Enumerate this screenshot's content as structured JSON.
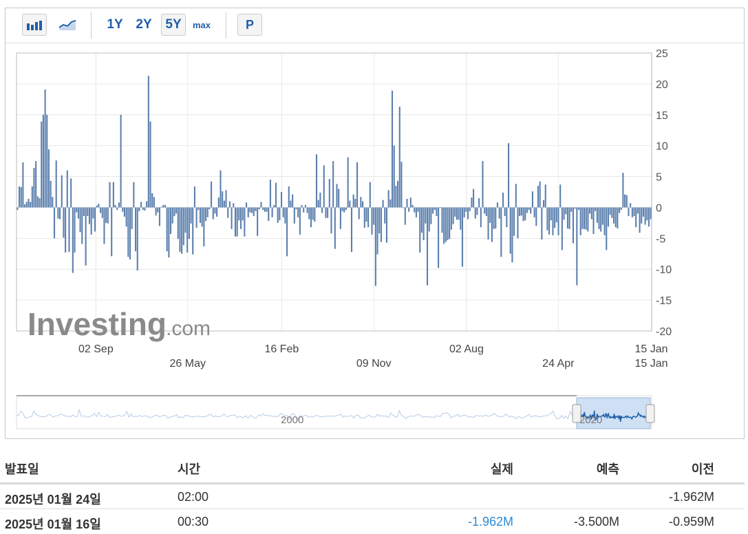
{
  "toolbar": {
    "bar_icon": "bar-chart-icon",
    "line_icon": "line-chart-icon",
    "ranges": [
      "1Y",
      "2Y",
      "5Y",
      "max"
    ],
    "active_range": "5Y",
    "p_label": "P"
  },
  "watermark": {
    "brand": "Investing",
    "suffix": ".com"
  },
  "chart_data": {
    "type": "bar",
    "title": "",
    "xlabel": "",
    "ylabel": "",
    "ylim": [
      -20,
      25
    ],
    "y_ticks": [
      25,
      20,
      15,
      10,
      5,
      0,
      -5,
      -10,
      -15,
      -20
    ],
    "grid": true,
    "x_ticks_upper": [
      "02 Sep",
      "16 Feb",
      "02 Aug",
      "15 Jan"
    ],
    "x_ticks_lower": [
      "26 May",
      "09 Nov",
      "24 Apr",
      "15 Jan"
    ],
    "navigator_label": "2000",
    "navigator_label_2": "2020",
    "values": [
      -0.4,
      3.4,
      3.3,
      7.3,
      0.5,
      0.9,
      1.4,
      0.9,
      3.4,
      6.4,
      7.5,
      1.8,
      1.5,
      13.9,
      15.0,
      19.1,
      15.0,
      9.4,
      4.3,
      1.7,
      -5.0,
      7.6,
      -1.8,
      -1.9,
      5.2,
      -4.9,
      -7.3,
      6.0,
      -7.2,
      4.7,
      -10.6,
      -7.3,
      -0.8,
      -1.8,
      -4.0,
      -5.9,
      -1.4,
      -9.4,
      -1.4,
      -2.7,
      -4.4,
      -1.8,
      -3.9,
      0.3,
      0.6,
      -0.9,
      -1.7,
      -5.9,
      -2.5,
      -2.6,
      4.1,
      -7.9,
      4.1,
      0.4,
      -0.4,
      0.8,
      15.0,
      -0.7,
      -1.5,
      -3.1,
      -8.0,
      -8.4,
      -3.5,
      4.1,
      -7.1,
      -10.2,
      -0.6,
      0.9,
      -0.4,
      -0.5,
      1.0,
      21.3,
      13.9,
      2.3,
      1.7,
      -1.3,
      -0.8,
      -3.0,
      0.1,
      0.4,
      0.4,
      -7.1,
      -8.1,
      -4.3,
      -2.6,
      -1.4,
      -1.0,
      -5.1,
      -7.2,
      -7.5,
      -6.1,
      -4.1,
      -7.3,
      -5.1,
      -2.6,
      -7.6,
      3.4,
      -3.3,
      -0.4,
      -2.5,
      -3.1,
      -6.3,
      -2.2,
      -1.6,
      -0.3,
      4.2,
      -1.9,
      -1.0,
      -1.5,
      1.6,
      6.0,
      2.6,
      1.1,
      2.8,
      -1.7,
      1.0,
      -3.5,
      0.7,
      -4.7,
      -4.7,
      -2.1,
      -3.5,
      -2.1,
      -4.7,
      0.8,
      -1.6,
      -0.8,
      -0.9,
      -1.4,
      -0.6,
      -4.6,
      -0.3,
      0.9,
      -0.4,
      -0.7,
      -0.7,
      -2.2,
      4.5,
      -1.6,
      0.4,
      4.0,
      -2.5,
      -2.1,
      2.5,
      -1.6,
      -2.6,
      -7.9,
      3.4,
      1.1,
      2.1,
      -2.6,
      -0.3,
      -1.6,
      -4.4,
      0.4,
      -0.8,
      0.4,
      -0.9,
      -1.9,
      -3.2,
      -2.0,
      -2.3,
      8.6,
      1.2,
      2.4,
      -0.9,
      6.8,
      -1.7,
      -1.7,
      4.6,
      -4.2,
      7.5,
      -6.7,
      3.8,
      3.0,
      -3.5,
      -0.6,
      -0.8,
      -0.4,
      8.1,
      1.1,
      -7.2,
      2.1,
      1.4,
      7.3,
      -1.9,
      1.7,
      1.0,
      -3.3,
      -2.3,
      -3.2,
      4.1,
      -4.4,
      -2.8,
      -12.7,
      -7.6,
      -4.2,
      -5.6,
      1.2,
      -2.6,
      -5.7,
      2.8,
      1.3,
      18.9,
      10.0,
      3.5,
      4.3,
      16.3,
      7.4,
      -0.1,
      -2.8,
      1.4,
      -0.7,
      1.6,
      0.4,
      -0.8,
      -1.6,
      -0.7,
      -7.3,
      -4.1,
      -5.3,
      -2.6,
      -12.6,
      -3.9,
      -2.7,
      -1.0,
      -0.4,
      -1.4,
      -9.8,
      -0.1,
      -4.1,
      -5.9,
      -5.6,
      -5.3,
      -5.1,
      -3.6,
      -2.7,
      -1.5,
      -2.0,
      -2.0,
      -3.6,
      -9.6,
      -1.6,
      -0.7,
      -1.9,
      -0.6,
      1.6,
      3.0,
      -1.8,
      -1.2,
      1.5,
      -3.2,
      7.5,
      -1.0,
      -1.4,
      -5.2,
      -2.5,
      -5.6,
      -3.5,
      -3.4,
      0.8,
      -1.8,
      -8.0,
      2.4,
      -1.4,
      -3.2,
      10.4,
      -7.5,
      -8.9,
      -4.6,
      3.8,
      -5.0,
      -1.4,
      -1.3,
      -2.2,
      -2.1,
      -0.9,
      -0.4,
      -1.0,
      2.6,
      -1.6,
      -3.0,
      3.5,
      4.2,
      -5.2,
      1.2,
      3.7,
      -3.7,
      -4.4,
      -2.1,
      -4.5,
      -3.3,
      -2.4,
      -4.5,
      3.7,
      -6.9,
      -2.0,
      -1.1,
      -3.4,
      -3.5,
      -0.7,
      -5.8,
      -0.2,
      -12.6,
      -0.4,
      -4.5,
      -3.5,
      -3.5,
      -3.6,
      -3.9,
      -1.0,
      -1.9,
      -4.3,
      -0.6,
      -2.5,
      -3.5,
      -3.9,
      -2.8,
      -4.5,
      -6.9,
      -3.1,
      -1.2,
      -1.7,
      -2.6,
      -3.2,
      -3.4,
      -0.9,
      -0.4,
      5.6,
      2.1,
      2.0,
      -1.4,
      0.7,
      -1.6,
      -1.4,
      -3.2,
      -1.0,
      -4.1,
      -2.6,
      -1.5,
      -2.8,
      -2.1,
      -3.1,
      -1.9
    ],
    "bar_color": "#5b7fad"
  },
  "table": {
    "headers": {
      "date": "발표일",
      "time": "시간",
      "actual": "실제",
      "forecast": "예측",
      "previous": "이전"
    },
    "rows": [
      {
        "date": "2025년 01월 24일",
        "time": "02:00",
        "actual": "",
        "forecast": "",
        "previous": "-1.962M"
      },
      {
        "date": "2025년 01월 16일",
        "time": "00:30",
        "actual": "-1.962M",
        "forecast": "-3.500M",
        "previous": "-0.959M"
      }
    ],
    "actual_color": "#2a8bd8"
  }
}
